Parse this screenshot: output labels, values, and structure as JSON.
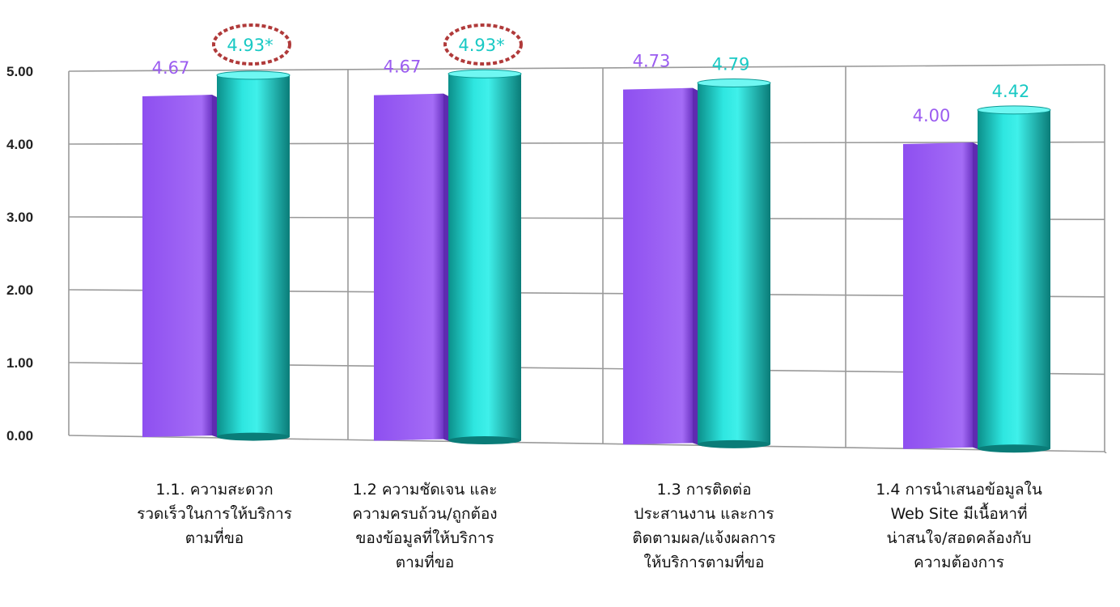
{
  "chart_data": {
    "type": "bar",
    "categories": [
      "1.1. ความสะดวก\nรวดเร็วในการให้บริการ\nตามที่ขอ",
      "1.2 ความชัดเจน และ\nความครบถ้วน/ถูกต้อง\nของข้อมูลที่ให้บริการ\nตามที่ขอ",
      "1.3 การติดต่อ\nประสานงาน และการ\nติดตามผล/แจ้งผลการ\nให้บริการตามที่ขอ",
      "1.4 การนำเสนอข้อมูลใน\nWeb Site มีเนื้อหาที่\nน่าสนใจ/สอดคล้องกับ\nความต้องการ"
    ],
    "series": [
      {
        "color": "#9b5cf0",
        "values": [
          4.67,
          4.67,
          4.73,
          4.0
        ],
        "labels": [
          "4.67",
          "4.67",
          "4.73",
          "4.00"
        ]
      },
      {
        "color": "#19c9c4",
        "values": [
          4.93,
          4.93,
          4.79,
          4.42
        ],
        "labels": [
          "4.93*",
          "4.93*",
          "4.79",
          "4.42"
        ],
        "circled": [
          true,
          true,
          false,
          false
        ]
      }
    ],
    "yticks": [
      "0.00",
      "1.00",
      "2.00",
      "3.00",
      "4.00",
      "5.00"
    ],
    "ylim": [
      0,
      5
    ],
    "grid": true,
    "title": "",
    "xlabel": "",
    "ylabel": "",
    "highlight_color": "#b03a3a"
  }
}
